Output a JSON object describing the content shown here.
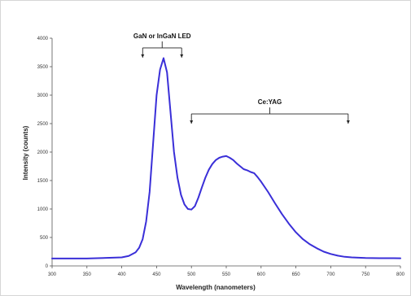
{
  "chart_data": {
    "type": "line",
    "title": "",
    "xlabel": "Wavelength (nanometers)",
    "ylabel": "Intensity (counts)",
    "xlim": [
      300,
      800
    ],
    "ylim": [
      0,
      4000
    ],
    "xticks": [
      300,
      350,
      400,
      450,
      500,
      550,
      600,
      650,
      700,
      750,
      800
    ],
    "yticks": [
      0,
      500,
      1000,
      1500,
      2000,
      2500,
      3000,
      3500,
      4000
    ],
    "grid": false,
    "legend": "none",
    "series": [
      {
        "color": "#3a2fd8",
        "x": [
          300,
          350,
          400,
          410,
          420,
          425,
          430,
          435,
          440,
          445,
          450,
          455,
          460,
          465,
          470,
          475,
          480,
          485,
          490,
          495,
          500,
          505,
          510,
          515,
          520,
          525,
          530,
          535,
          540,
          545,
          550,
          555,
          560,
          565,
          570,
          575,
          580,
          585,
          590,
          595,
          600,
          610,
          620,
          630,
          640,
          650,
          660,
          670,
          680,
          690,
          700,
          710,
          720,
          730,
          740,
          750,
          760,
          770,
          780,
          790,
          800
        ],
        "y": [
          130,
          130,
          150,
          175,
          240,
          320,
          470,
          780,
          1300,
          2150,
          3000,
          3450,
          3650,
          3400,
          2700,
          2000,
          1550,
          1250,
          1080,
          1000,
          990,
          1050,
          1200,
          1380,
          1550,
          1690,
          1790,
          1860,
          1900,
          1920,
          1930,
          1900,
          1860,
          1800,
          1750,
          1700,
          1680,
          1650,
          1630,
          1560,
          1480,
          1300,
          1100,
          910,
          740,
          590,
          470,
          380,
          310,
          250,
          210,
          180,
          160,
          150,
          145,
          140,
          138,
          136,
          135,
          135,
          134
        ]
      }
    ],
    "annotations": [
      {
        "text": "GaN or InGaN  LED",
        "x_start": 430,
        "x_end": 486,
        "y": 3830
      },
      {
        "text": "Ce:YAG",
        "x_start": 500,
        "x_end": 725,
        "y": 2670
      }
    ]
  }
}
